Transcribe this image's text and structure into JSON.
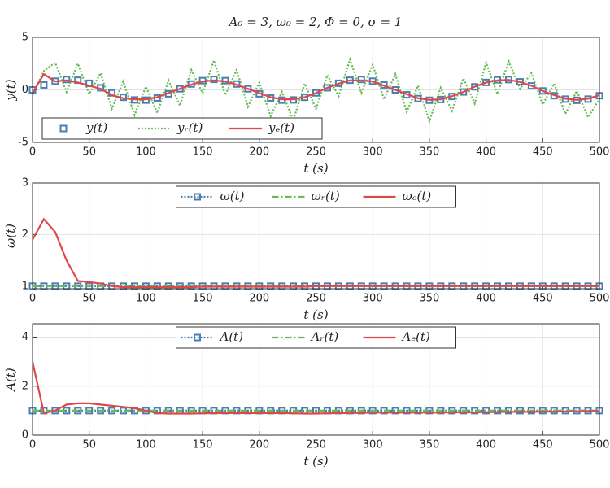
{
  "chart_data": [
    {
      "type": "line",
      "title": "A₀ = 3, ω₀ = 2, Φ = 0, σ = 1",
      "xlabel": "t (s)",
      "ylabel": "y(t)",
      "xlim": [
        0,
        500
      ],
      "xticks": [
        0,
        50,
        100,
        150,
        200,
        250,
        300,
        350,
        400,
        450,
        500
      ],
      "ylim": [
        -5,
        5
      ],
      "yticks": [
        -5,
        0,
        5
      ],
      "grid": true,
      "legend": "lower left",
      "x": [
        0,
        10,
        20,
        30,
        40,
        50,
        60,
        70,
        80,
        90,
        100,
        110,
        120,
        130,
        140,
        150,
        160,
        170,
        180,
        190,
        200,
        210,
        220,
        230,
        240,
        250,
        260,
        270,
        280,
        290,
        300,
        310,
        320,
        330,
        340,
        350,
        360,
        370,
        380,
        390,
        400,
        410,
        420,
        430,
        440,
        450,
        460,
        470,
        480,
        490,
        500
      ],
      "series": [
        {
          "name": "yᵣ(t)",
          "color": "#66bb55",
          "linestyle": "dotted",
          "marker": "none",
          "values": [
            -0.5,
            1.8,
            2.6,
            -0.2,
            2.5,
            -0.4,
            1.6,
            -1.8,
            0.8,
            -2.4,
            0.3,
            -2.2,
            0.9,
            -1.5,
            1.9,
            -0.3,
            2.8,
            -0.5,
            1.9,
            -1.6,
            0.7,
            -2.5,
            -0.2,
            -2.9,
            0.6,
            -1.8,
            1.4,
            -0.6,
            2.9,
            -0.3,
            2.4,
            -0.9,
            1.5,
            -2.1,
            0.4,
            -3.0,
            0.2,
            -2.0,
            1.1,
            -1.3,
            2.6,
            -0.4,
            2.7,
            0.1,
            1.6,
            -1.4,
            0.6,
            -2.3,
            -0.1,
            -2.6,
            -0.9
          ]
        },
        {
          "name": "y(t)",
          "color": "#4a7fb0",
          "linestyle": "none",
          "marker": "square",
          "values": [
            0,
            0.47,
            0.83,
            0.99,
            0.92,
            0.63,
            0.2,
            -0.29,
            -0.71,
            -0.96,
            -0.98,
            -0.77,
            -0.38,
            0.1,
            0.56,
            0.88,
            1,
            0.88,
            0.56,
            0.1,
            -0.38,
            -0.77,
            -0.98,
            -0.96,
            -0.71,
            -0.29,
            0.2,
            0.63,
            0.92,
            0.99,
            0.83,
            0.47,
            0,
            -0.47,
            -0.83,
            -0.99,
            -0.92,
            -0.63,
            -0.2,
            0.29,
            0.71,
            0.96,
            0.98,
            0.77,
            0.38,
            -0.1,
            -0.56,
            -0.88,
            -1,
            -0.88,
            -0.56
          ]
        },
        {
          "name": "yₑ(t)",
          "color": "#e04848",
          "linestyle": "solid",
          "marker": "none",
          "values": [
            -0.3,
            1.5,
            0.8,
            0.9,
            0.7,
            0.4,
            0.1,
            -0.5,
            -0.8,
            -0.9,
            -0.9,
            -0.7,
            -0.3,
            0.1,
            0.5,
            0.8,
            0.9,
            0.8,
            0.5,
            0.1,
            -0.3,
            -0.7,
            -0.9,
            -0.9,
            -0.7,
            -0.3,
            0.2,
            0.6,
            0.9,
            0.9,
            0.8,
            0.4,
            0,
            -0.4,
            -0.8,
            -0.95,
            -0.9,
            -0.6,
            -0.2,
            0.3,
            0.7,
            0.9,
            0.95,
            0.75,
            0.4,
            -0.1,
            -0.5,
            -0.85,
            -0.95,
            -0.85,
            -0.5
          ]
        }
      ]
    },
    {
      "type": "line",
      "xlabel": "t (s)",
      "ylabel": "ω(t)",
      "xlim": [
        0,
        500
      ],
      "xticks": [
        0,
        50,
        100,
        150,
        200,
        250,
        300,
        350,
        400,
        450,
        500
      ],
      "ylim": [
        0.95,
        3
      ],
      "yticks": [
        1,
        2,
        3
      ],
      "grid": true,
      "legend": "upper center",
      "x": [
        0,
        10,
        20,
        30,
        40,
        50,
        60,
        70,
        80,
        90,
        100,
        110,
        120,
        130,
        140,
        150,
        160,
        170,
        180,
        190,
        200,
        210,
        220,
        230,
        240,
        250,
        260,
        270,
        280,
        290,
        300,
        310,
        320,
        330,
        340,
        350,
        360,
        370,
        380,
        390,
        400,
        410,
        420,
        430,
        440,
        450,
        460,
        470,
        480,
        490,
        500
      ],
      "series": [
        {
          "name": "ω(t)",
          "color": "#4a7fb0",
          "linestyle": "dotted",
          "marker": "square",
          "values": [
            1,
            1,
            1,
            1,
            1,
            1,
            1,
            1,
            1,
            1,
            1,
            1,
            1,
            1,
            1,
            1,
            1,
            1,
            1,
            1,
            1,
            1,
            1,
            1,
            1,
            1,
            1,
            1,
            1,
            1,
            1,
            1,
            1,
            1,
            1,
            1,
            1,
            1,
            1,
            1,
            1,
            1,
            1,
            1,
            1,
            1,
            1,
            1,
            1,
            1,
            1
          ]
        },
        {
          "name": "ωᵣ(t)",
          "color": "#66bb55",
          "linestyle": "dashdot",
          "marker": "none",
          "values": [
            1,
            1,
            1,
            1,
            1,
            1,
            1,
            1,
            1,
            1,
            1,
            1,
            1,
            1,
            1,
            1,
            1,
            1,
            1,
            1,
            1,
            1,
            1,
            1,
            1,
            1,
            1,
            1,
            1,
            1,
            1,
            1,
            1,
            1,
            1,
            1,
            1,
            1,
            1,
            1,
            1,
            1,
            1,
            1,
            1,
            1,
            1,
            1,
            1,
            1,
            1
          ]
        },
        {
          "name": "ωₑ(t)",
          "color": "#e04848",
          "linestyle": "solid",
          "marker": "none",
          "values": [
            1.9,
            2.3,
            2.05,
            1.5,
            1.1,
            1.08,
            1.05,
            1.0,
            0.98,
            0.98,
            0.98,
            0.98,
            0.98,
            0.98,
            0.98,
            0.99,
            0.99,
            0.99,
            0.99,
            0.99,
            0.99,
            0.99,
            0.99,
            0.99,
            0.99,
            1,
            1,
            1,
            1,
            1,
            1,
            1,
            1,
            1,
            1,
            1,
            1,
            1,
            1,
            1,
            1,
            1,
            1,
            1,
            1,
            1,
            1,
            1,
            1,
            1,
            1
          ]
        }
      ]
    },
    {
      "type": "line",
      "xlabel": "t (s)",
      "ylabel": "A(t)",
      "xlim": [
        0,
        500
      ],
      "xticks": [
        0,
        50,
        100,
        150,
        200,
        250,
        300,
        350,
        400,
        450,
        500
      ],
      "ylim": [
        0,
        4.55
      ],
      "yticks": [
        0,
        2,
        4
      ],
      "grid": true,
      "legend": "upper center",
      "x": [
        0,
        10,
        20,
        30,
        40,
        50,
        60,
        70,
        80,
        90,
        100,
        110,
        120,
        130,
        140,
        150,
        160,
        170,
        180,
        190,
        200,
        210,
        220,
        230,
        240,
        250,
        260,
        270,
        280,
        290,
        300,
        310,
        320,
        330,
        340,
        350,
        360,
        370,
        380,
        390,
        400,
        410,
        420,
        430,
        440,
        450,
        460,
        470,
        480,
        490,
        500
      ],
      "series": [
        {
          "name": "A(t)",
          "color": "#4a7fb0",
          "linestyle": "dotted",
          "marker": "square",
          "values": [
            1,
            1,
            1,
            1,
            1,
            1,
            1,
            1,
            1,
            1,
            1,
            1,
            1,
            1,
            1,
            1,
            1,
            1,
            1,
            1,
            1,
            1,
            1,
            1,
            1,
            1,
            1,
            1,
            1,
            1,
            1,
            1,
            1,
            1,
            1,
            1,
            1,
            1,
            1,
            1,
            1,
            1,
            1,
            1,
            1,
            1,
            1,
            1,
            1,
            1,
            1
          ]
        },
        {
          "name": "Aᵣ(t)",
          "color": "#66bb55",
          "linestyle": "dashdot",
          "marker": "none",
          "values": [
            1,
            1,
            1,
            1,
            1,
            1,
            1,
            1,
            1,
            1,
            1,
            1,
            1,
            1,
            1,
            1,
            1,
            1,
            1,
            1,
            1,
            1,
            1,
            1,
            1,
            1,
            1,
            1,
            1,
            1,
            1,
            1,
            1,
            1,
            1,
            1,
            1,
            1,
            1,
            1,
            1,
            1,
            1,
            1,
            1,
            1,
            1,
            1,
            1,
            1,
            1
          ]
        },
        {
          "name": "Aₑ(t)",
          "color": "#e04848",
          "linestyle": "solid",
          "marker": "none",
          "values": [
            3.0,
            0.9,
            1.0,
            1.25,
            1.3,
            1.3,
            1.25,
            1.2,
            1.15,
            1.1,
            1.0,
            0.9,
            0.88,
            0.88,
            0.88,
            0.89,
            0.9,
            0.9,
            0.9,
            0.9,
            0.9,
            0.9,
            0.9,
            0.89,
            0.88,
            0.88,
            0.89,
            0.9,
            0.9,
            0.91,
            0.92,
            0.92,
            0.92,
            0.92,
            0.92,
            0.92,
            0.92,
            0.93,
            0.93,
            0.93,
            0.94,
            0.94,
            0.95,
            0.95,
            0.95,
            0.96,
            0.96,
            0.97,
            0.97,
            0.98,
            0.98
          ]
        }
      ]
    }
  ]
}
